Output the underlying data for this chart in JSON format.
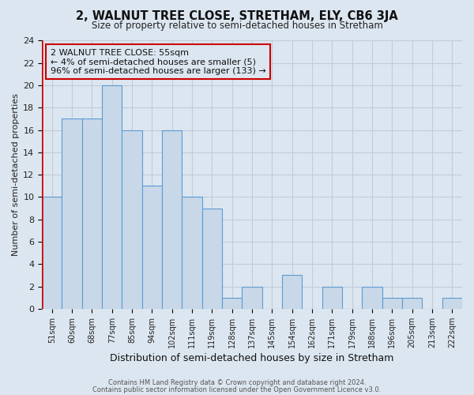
{
  "title_line1": "2, WALNUT TREE CLOSE, STRETHAM, ELY, CB6 3JA",
  "title_line2": "Size of property relative to semi-detached houses in Stretham",
  "xlabel": "Distribution of semi-detached houses by size in Stretham",
  "ylabel": "Number of semi-detached properties",
  "bin_labels": [
    "51sqm",
    "60sqm",
    "68sqm",
    "77sqm",
    "85sqm",
    "94sqm",
    "102sqm",
    "111sqm",
    "119sqm",
    "128sqm",
    "137sqm",
    "145sqm",
    "154sqm",
    "162sqm",
    "171sqm",
    "179sqm",
    "188sqm",
    "196sqm",
    "205sqm",
    "213sqm",
    "222sqm"
  ],
  "bar_values": [
    10,
    17,
    17,
    20,
    16,
    11,
    16,
    10,
    9,
    1,
    2,
    0,
    3,
    0,
    2,
    0,
    2,
    1,
    1,
    0,
    1
  ],
  "bar_color": "#c8d8e8",
  "bar_edge_color": "#5b9bd5",
  "highlight_bar_index": 0,
  "highlight_edge_color": "#cc0000",
  "ylim": [
    0,
    24
  ],
  "yticks": [
    0,
    2,
    4,
    6,
    8,
    10,
    12,
    14,
    16,
    18,
    20,
    22,
    24
  ],
  "grid_color": "#c0ccd8",
  "bg_color": "#dce6f0",
  "annotation_text": "2 WALNUT TREE CLOSE: 55sqm\n← 4% of semi-detached houses are smaller (5)\n96% of semi-detached houses are larger (133) →",
  "annotation_box_edge": "#cc0000",
  "footer_line1": "Contains HM Land Registry data © Crown copyright and database right 2024.",
  "footer_line2": "Contains public sector information licensed under the Open Government Licence v3.0.",
  "n_bins": 21
}
